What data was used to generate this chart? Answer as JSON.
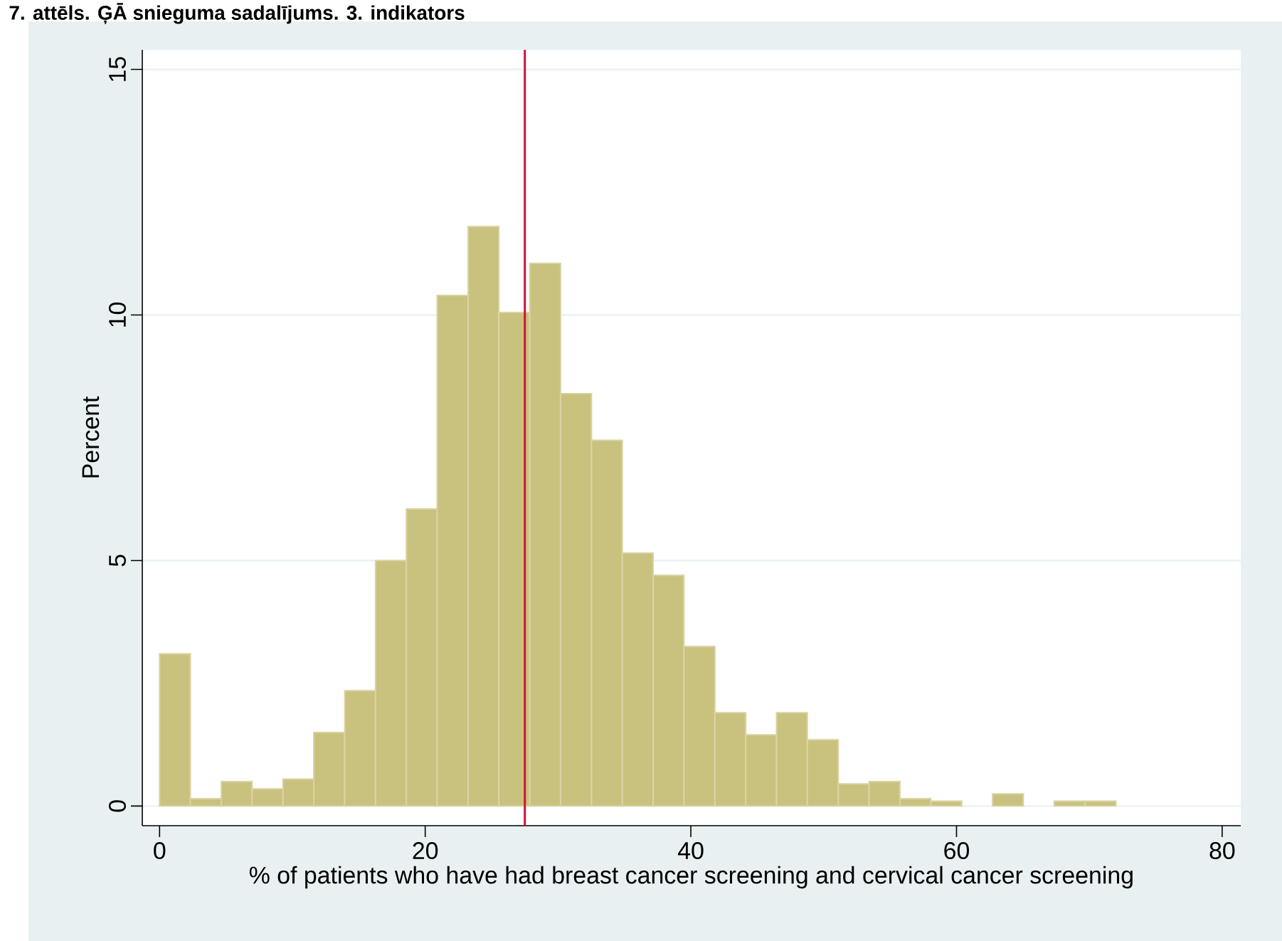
{
  "chart_data": {
    "type": "histogram",
    "title": "7. attēls. ĢĀ snieguma sadalījums. 3. indikators",
    "xlabel": "% of patients who have had breast cancer screening and cervical cancer screening",
    "ylabel": "Percent",
    "bins": [
      0,
      2.32,
      4.65,
      6.97,
      9.29,
      11.61,
      13.94,
      16.26,
      18.58,
      20.9,
      23.23,
      25.55,
      27.87,
      30.19,
      32.52,
      34.84,
      37.16,
      39.48,
      41.81,
      44.13,
      46.45,
      48.77,
      51.1,
      53.42,
      55.74,
      58.06,
      60.39,
      62.71,
      65.03,
      67.35,
      69.68,
      72
    ],
    "values": [
      3.1,
      0.15,
      0.5,
      0.35,
      0.55,
      1.5,
      2.35,
      5,
      6.05,
      10.4,
      11.8,
      10.05,
      11.05,
      8.4,
      7.45,
      5.15,
      4.7,
      3.25,
      1.9,
      1.45,
      1.9,
      1.35,
      0.45,
      0.5,
      0.15,
      0.1,
      0,
      0.25,
      0,
      0.1,
      0.1
    ],
    "color": "#c9c27e",
    "xlim": [
      -1.3,
      81.4
    ],
    "ylim": [
      -0.4,
      15.4
    ],
    "xticks": [
      0,
      20,
      40,
      60,
      80
    ],
    "yticks": [
      0,
      5,
      10,
      15
    ],
    "grid": "y",
    "ref_lines": [
      {
        "axis": "x",
        "value": 27.5,
        "color": "#d0103a"
      }
    ]
  }
}
